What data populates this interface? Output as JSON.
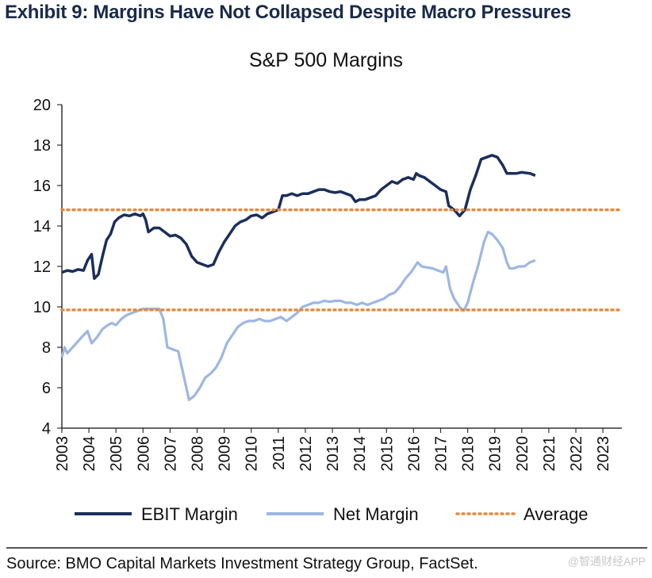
{
  "exhibit_title": "Exhibit 9: Margins Have Not Collapsed Despite Macro Pressures",
  "source": "Source: BMO Capital Markets Investment Strategy Group, FactSet.",
  "watermark": "@智通财经APP",
  "colors": {
    "ebit": "#1b2f5c",
    "net": "#9db7e3",
    "average": "#e8893a",
    "axis": "#333333"
  },
  "chart_data": {
    "type": "line",
    "title": "S&P 500 Margins",
    "xlabel": "",
    "ylabel": "",
    "xlim": [
      2003,
      2023.7
    ],
    "ylim": [
      4,
      20
    ],
    "yticks": [
      4,
      6,
      8,
      10,
      12,
      14,
      16,
      18,
      20
    ],
    "xticks": [
      "2003",
      "2004",
      "2005",
      "2006",
      "2007",
      "2008",
      "2009",
      "2010",
      "2011",
      "2012",
      "2013",
      "2014",
      "2015",
      "2016",
      "2017",
      "2018",
      "2019",
      "2020",
      "2021",
      "2022",
      "2023"
    ],
    "grid": false,
    "legend": "bottom",
    "series": [
      {
        "name": "EBIT Margin",
        "style": "solid",
        "points": [
          [
            2003.0,
            11.7
          ],
          [
            2003.2,
            11.8
          ],
          [
            2003.4,
            11.75
          ],
          [
            2003.6,
            11.85
          ],
          [
            2003.8,
            11.8
          ],
          [
            2003.95,
            12.3
          ],
          [
            2004.1,
            12.6
          ],
          [
            2004.2,
            11.4
          ],
          [
            2004.35,
            11.6
          ],
          [
            2004.5,
            12.5
          ],
          [
            2004.65,
            13.3
          ],
          [
            2004.8,
            13.6
          ],
          [
            2004.95,
            14.2
          ],
          [
            2005.1,
            14.4
          ],
          [
            2005.3,
            14.55
          ],
          [
            2005.5,
            14.5
          ],
          [
            2005.7,
            14.6
          ],
          [
            2005.9,
            14.5
          ],
          [
            2006.0,
            14.6
          ],
          [
            2006.1,
            14.3
          ],
          [
            2006.2,
            13.7
          ],
          [
            2006.4,
            13.9
          ],
          [
            2006.6,
            13.9
          ],
          [
            2006.8,
            13.7
          ],
          [
            2007.0,
            13.5
          ],
          [
            2007.2,
            13.55
          ],
          [
            2007.4,
            13.4
          ],
          [
            2007.6,
            13.1
          ],
          [
            2007.8,
            12.5
          ],
          [
            2008.0,
            12.2
          ],
          [
            2008.2,
            12.1
          ],
          [
            2008.4,
            12.0
          ],
          [
            2008.6,
            12.1
          ],
          [
            2008.8,
            12.7
          ],
          [
            2009.0,
            13.2
          ],
          [
            2009.2,
            13.6
          ],
          [
            2009.4,
            14.0
          ],
          [
            2009.6,
            14.2
          ],
          [
            2009.8,
            14.3
          ],
          [
            2010.0,
            14.5
          ],
          [
            2010.2,
            14.55
          ],
          [
            2010.4,
            14.4
          ],
          [
            2010.6,
            14.6
          ],
          [
            2010.8,
            14.7
          ],
          [
            2011.0,
            14.8
          ],
          [
            2011.15,
            15.5
          ],
          [
            2011.3,
            15.5
          ],
          [
            2011.5,
            15.6
          ],
          [
            2011.7,
            15.5
          ],
          [
            2011.9,
            15.6
          ],
          [
            2012.1,
            15.6
          ],
          [
            2012.3,
            15.7
          ],
          [
            2012.5,
            15.8
          ],
          [
            2012.7,
            15.8
          ],
          [
            2012.9,
            15.7
          ],
          [
            2013.1,
            15.65
          ],
          [
            2013.3,
            15.7
          ],
          [
            2013.5,
            15.6
          ],
          [
            2013.7,
            15.5
          ],
          [
            2013.85,
            15.2
          ],
          [
            2014.0,
            15.3
          ],
          [
            2014.2,
            15.3
          ],
          [
            2014.4,
            15.4
          ],
          [
            2014.6,
            15.5
          ],
          [
            2014.8,
            15.8
          ],
          [
            2015.0,
            16.0
          ],
          [
            2015.2,
            16.2
          ],
          [
            2015.4,
            16.1
          ],
          [
            2015.6,
            16.3
          ],
          [
            2015.8,
            16.4
          ],
          [
            2016.0,
            16.3
          ],
          [
            2016.1,
            16.6
          ],
          [
            2016.2,
            16.5
          ],
          [
            2016.4,
            16.4
          ],
          [
            2016.6,
            16.2
          ],
          [
            2016.8,
            16.0
          ],
          [
            2017.0,
            15.8
          ],
          [
            2017.2,
            15.7
          ],
          [
            2017.3,
            15.0
          ],
          [
            2017.5,
            14.8
          ],
          [
            2017.7,
            14.5
          ],
          [
            2017.9,
            14.8
          ],
          [
            2018.1,
            15.8
          ],
          [
            2018.3,
            16.5
          ],
          [
            2018.5,
            17.3
          ],
          [
            2018.7,
            17.4
          ],
          [
            2018.9,
            17.5
          ],
          [
            2019.1,
            17.4
          ],
          [
            2019.3,
            17.0
          ],
          [
            2019.45,
            16.6
          ],
          [
            2019.6,
            16.6
          ],
          [
            2019.8,
            16.6
          ],
          [
            2020.0,
            16.65
          ],
          [
            2020.3,
            16.6
          ],
          [
            2020.5,
            16.5
          ]
        ]
      },
      {
        "name": "Net Margin",
        "style": "solid",
        "points": [
          [
            2003.0,
            7.5
          ],
          [
            2003.1,
            8.0
          ],
          [
            2003.2,
            7.7
          ],
          [
            2003.4,
            8.0
          ],
          [
            2003.6,
            8.3
          ],
          [
            2003.8,
            8.6
          ],
          [
            2003.95,
            8.8
          ],
          [
            2004.1,
            8.2
          ],
          [
            2004.3,
            8.5
          ],
          [
            2004.5,
            8.9
          ],
          [
            2004.7,
            9.1
          ],
          [
            2004.85,
            9.2
          ],
          [
            2005.0,
            9.1
          ],
          [
            2005.2,
            9.4
          ],
          [
            2005.4,
            9.6
          ],
          [
            2005.6,
            9.7
          ],
          [
            2005.8,
            9.8
          ],
          [
            2006.0,
            9.9
          ],
          [
            2006.2,
            9.9
          ],
          [
            2006.4,
            9.9
          ],
          [
            2006.6,
            9.9
          ],
          [
            2006.75,
            9.4
          ],
          [
            2006.9,
            8.0
          ],
          [
            2007.1,
            7.9
          ],
          [
            2007.3,
            7.8
          ],
          [
            2007.5,
            6.6
          ],
          [
            2007.7,
            5.4
          ],
          [
            2007.9,
            5.6
          ],
          [
            2008.1,
            6.0
          ],
          [
            2008.3,
            6.5
          ],
          [
            2008.5,
            6.7
          ],
          [
            2008.7,
            7.0
          ],
          [
            2008.9,
            7.5
          ],
          [
            2009.1,
            8.2
          ],
          [
            2009.3,
            8.6
          ],
          [
            2009.5,
            9.0
          ],
          [
            2009.7,
            9.2
          ],
          [
            2009.9,
            9.3
          ],
          [
            2010.1,
            9.3
          ],
          [
            2010.3,
            9.4
          ],
          [
            2010.5,
            9.3
          ],
          [
            2010.7,
            9.3
          ],
          [
            2010.9,
            9.4
          ],
          [
            2011.1,
            9.5
          ],
          [
            2011.3,
            9.3
          ],
          [
            2011.5,
            9.5
          ],
          [
            2011.7,
            9.7
          ],
          [
            2011.9,
            10.0
          ],
          [
            2012.1,
            10.1
          ],
          [
            2012.3,
            10.2
          ],
          [
            2012.5,
            10.2
          ],
          [
            2012.7,
            10.3
          ],
          [
            2012.9,
            10.25
          ],
          [
            2013.1,
            10.3
          ],
          [
            2013.3,
            10.3
          ],
          [
            2013.5,
            10.2
          ],
          [
            2013.7,
            10.2
          ],
          [
            2013.9,
            10.1
          ],
          [
            2014.1,
            10.2
          ],
          [
            2014.3,
            10.1
          ],
          [
            2014.5,
            10.2
          ],
          [
            2014.7,
            10.3
          ],
          [
            2014.9,
            10.4
          ],
          [
            2015.1,
            10.6
          ],
          [
            2015.3,
            10.7
          ],
          [
            2015.5,
            11.0
          ],
          [
            2015.7,
            11.4
          ],
          [
            2015.9,
            11.7
          ],
          [
            2016.05,
            12.0
          ],
          [
            2016.15,
            12.2
          ],
          [
            2016.3,
            12.0
          ],
          [
            2016.5,
            11.95
          ],
          [
            2016.7,
            11.9
          ],
          [
            2016.9,
            11.8
          ],
          [
            2017.1,
            11.7
          ],
          [
            2017.2,
            12.0
          ],
          [
            2017.35,
            10.9
          ],
          [
            2017.5,
            10.4
          ],
          [
            2017.7,
            10.0
          ],
          [
            2017.85,
            9.8
          ],
          [
            2018.0,
            10.2
          ],
          [
            2018.2,
            11.2
          ],
          [
            2018.4,
            12.1
          ],
          [
            2018.6,
            13.2
          ],
          [
            2018.75,
            13.7
          ],
          [
            2018.9,
            13.6
          ],
          [
            2019.1,
            13.3
          ],
          [
            2019.3,
            12.9
          ],
          [
            2019.45,
            12.2
          ],
          [
            2019.55,
            11.9
          ],
          [
            2019.7,
            11.9
          ],
          [
            2019.9,
            12.0
          ],
          [
            2020.1,
            12.0
          ],
          [
            2020.3,
            12.2
          ],
          [
            2020.5,
            12.3
          ]
        ]
      },
      {
        "name": "Average",
        "style": "dotted",
        "lines": [
          14.8,
          9.85
        ]
      }
    ]
  }
}
